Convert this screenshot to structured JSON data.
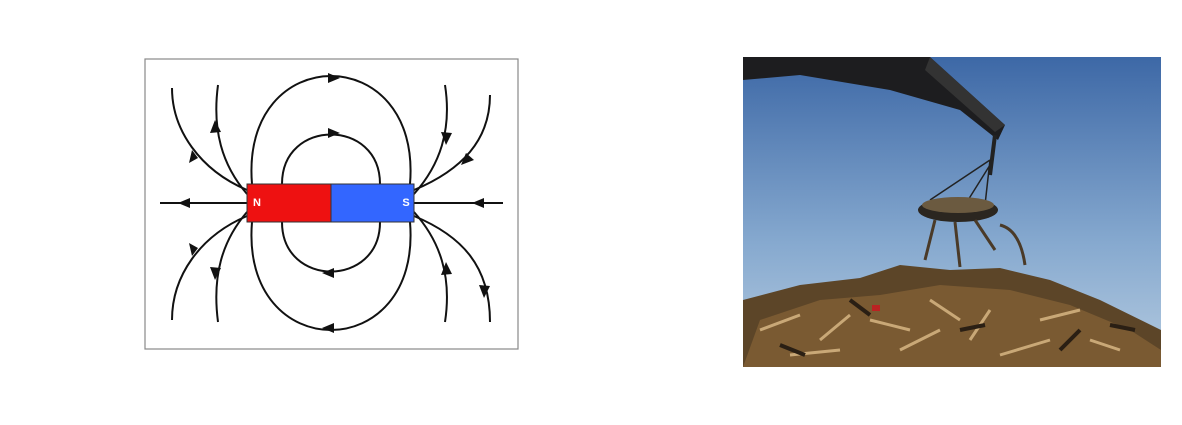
{
  "magnet": {
    "north_label": "N",
    "south_label": "S"
  }
}
